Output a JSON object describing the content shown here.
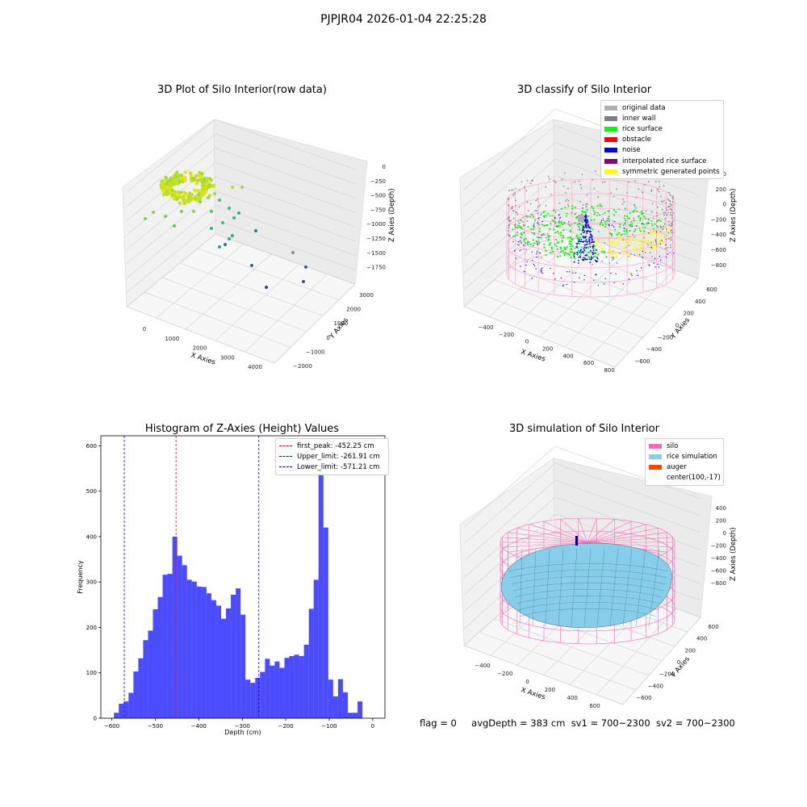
{
  "figure": {
    "suptitle": "PJPJR04 2026-01-04 22:25:28",
    "footer": {
      "flag": "flag = 0",
      "avg_depth": "avgDepth = 383 cm",
      "sv1": "sv1 = 700~2300",
      "sv2": "sv2 = 700~2300"
    }
  },
  "chart_data": [
    {
      "type": "scatter",
      "projection": "3d",
      "title": "3D Plot of Silo Interior(row data)",
      "xlabel": "X Axies",
      "ylabel": "Y Axies",
      "zlabel": "Z Axies (Depth)",
      "xticks": [
        "0",
        "1000",
        "2000",
        "3000",
        "4000"
      ],
      "yticks": [
        "3000",
        "2000",
        "1000",
        "0",
        "−1000",
        "−2000"
      ],
      "zticks": [
        "0",
        "−250",
        "−500",
        "−750",
        "−1000",
        "−1250",
        "−1500",
        "−1750"
      ],
      "colormap": "viridis",
      "grid": true
    },
    {
      "type": "scatter",
      "projection": "3d",
      "title": "3D classify of Silo Interior",
      "xlabel": "X Axies",
      "ylabel": "Y Axies",
      "zlabel": "Z Axies (Depth)",
      "xticks": [
        "−400",
        "−200",
        "0",
        "200",
        "400",
        "600",
        "800"
      ],
      "yticks": [
        "600",
        "400",
        "200",
        "0",
        "−200",
        "−400",
        "−600"
      ],
      "zticks": [
        "400",
        "200",
        "0",
        "−200",
        "−400",
        "−600",
        "−800"
      ],
      "legend_position": "top-right",
      "legend": [
        {
          "label": "original data",
          "color": "#b0b0b0"
        },
        {
          "label": "inner wall",
          "color": "#808080"
        },
        {
          "label": "rice surface",
          "color": "#00ff00"
        },
        {
          "label": "obstacle",
          "color": "#ff0000"
        },
        {
          "label": "noise",
          "color": "#0000ff"
        },
        {
          "label": "interpolated rice surface",
          "color": "#800080"
        },
        {
          "label": "symmetric generated points",
          "color": "#ffff00"
        }
      ],
      "grid": true
    },
    {
      "type": "bar",
      "title": "Histogram of Z-Axies (Height) Values",
      "xlabel": "Depth (cm)",
      "ylabel": "Frequency",
      "xlim": [
        -625,
        28
      ],
      "ylim": [
        0,
        622
      ],
      "xticks": [
        -600,
        -500,
        -400,
        -300,
        -200,
        -100,
        0
      ],
      "yticks": [
        0,
        100,
        200,
        300,
        400,
        500,
        600
      ],
      "bar_color": "#0000ff",
      "bin_start": -595,
      "bin_width": 11.2,
      "values": [
        12,
        32,
        37,
        56,
        103,
        132,
        172,
        193,
        240,
        267,
        316,
        318,
        400,
        358,
        337,
        305,
        301,
        290,
        289,
        275,
        260,
        248,
        219,
        242,
        272,
        286,
        228,
        85,
        78,
        89,
        102,
        131,
        116,
        125,
        111,
        133,
        137,
        140,
        137,
        162,
        241,
        305,
        587,
        420,
        85,
        48,
        86,
        57,
        12,
        12,
        37
      ],
      "reference_lines": [
        {
          "label": "first_peak: -452.25 cm",
          "x": -452.25,
          "color": "#ff0000"
        },
        {
          "label": "Upper_limit: -261.91 cm",
          "x": -261.91,
          "color": "#0000ff"
        },
        {
          "label": "Lower_limit: -571.21 cm",
          "x": -571.21,
          "color": "#0000ff"
        }
      ],
      "legend_position": "top-right",
      "grid": false
    },
    {
      "type": "area",
      "projection": "3d",
      "title": "3D simulation of Silo Interior",
      "xlabel": "X Axies",
      "ylabel": "Y Axies",
      "zlabel": "Z Axies (Depth)",
      "xticks": [
        "−400",
        "−200",
        "0",
        "200",
        "400",
        "600"
      ],
      "yticks": [
        "600",
        "400",
        "200",
        "0",
        "−200",
        "−400",
        "−600"
      ],
      "zticks": [
        "400",
        "200",
        "0",
        "−200",
        "−400",
        "−600",
        "−800"
      ],
      "legend_position": "top-right",
      "legend": [
        {
          "label": "silo",
          "color": "#ff69b4"
        },
        {
          "label": "rice simulation",
          "color": "#87ceeb"
        },
        {
          "label": "auger",
          "color": "#ff4500"
        },
        {
          "label": "center(100,-17)",
          "color": null
        }
      ],
      "grid": true
    }
  ]
}
